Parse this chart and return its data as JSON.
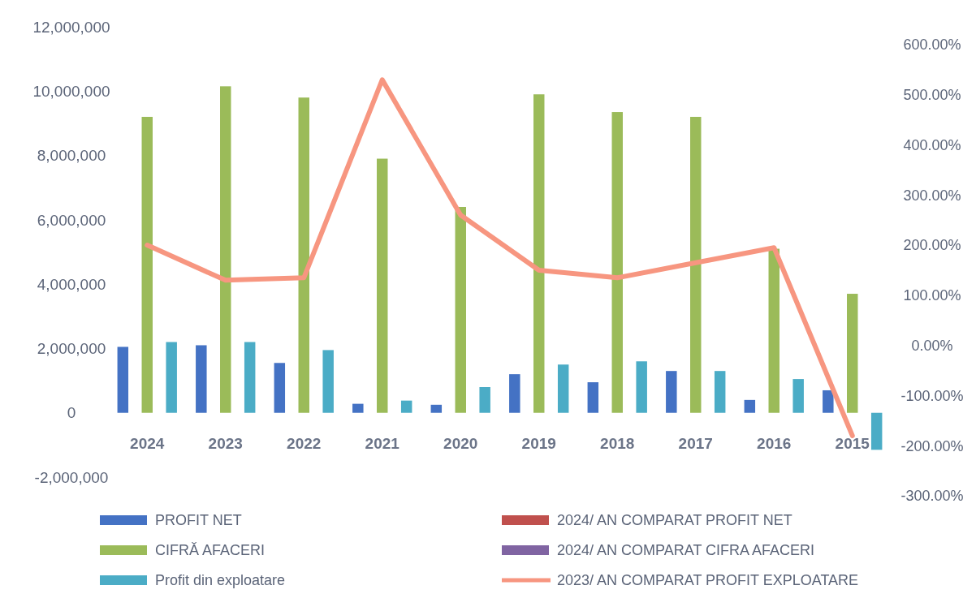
{
  "chart_data": {
    "type": "bar",
    "categories": [
      "2024",
      "2023",
      "2022",
      "2021",
      "2020",
      "2019",
      "2018",
      "2017",
      "2016",
      "2015"
    ],
    "series": [
      {
        "name": "PROFIT NET",
        "color": "#4472c4",
        "values": [
          2050000,
          2100000,
          1550000,
          280000,
          250000,
          1200000,
          950000,
          1300000,
          400000,
          700000
        ]
      },
      {
        "name": "CIFRĂ AFACERI",
        "color": "#9bbb59",
        "values": [
          9200000,
          10150000,
          9800000,
          7900000,
          6400000,
          9900000,
          9350000,
          9200000,
          5100000,
          3700000
        ]
      },
      {
        "name": "Profit din exploatare",
        "color": "#4bacc6",
        "values": [
          2200000,
          2200000,
          1950000,
          380000,
          800000,
          1500000,
          1600000,
          1300000,
          1050000,
          -1150000
        ]
      },
      {
        "name": "2024/ AN COMPARAT  PROFIT NET",
        "color": "#c0504d",
        "axis": "y2",
        "values": [
          null,
          null,
          null,
          null,
          null,
          null,
          null,
          null,
          null,
          null
        ]
      },
      {
        "name": "2024/ AN COMPARAT  CIFRA AFACERI",
        "color": "#8064a2",
        "axis": "y2",
        "values": [
          null,
          null,
          null,
          null,
          null,
          null,
          null,
          null,
          null,
          null
        ]
      },
      {
        "name": "2023/ AN COMPARAT  PROFIT EXPLOATARE",
        "color": "#f79680",
        "type": "line",
        "axis": "y2",
        "values": [
          200,
          130,
          135,
          530,
          260,
          150,
          135,
          165,
          195,
          -180
        ]
      }
    ],
    "ylim": [
      -2000000,
      12000000
    ],
    "yticks": [
      {
        "value": -2000000,
        "label": "-2,000,000"
      },
      0,
      {
        "value": 2000000,
        "label": "2,000,000"
      },
      {
        "value": 4000000,
        "label": "4,000,000"
      },
      {
        "value": 6000000,
        "label": "6,000,000"
      },
      {
        "value": 8000000,
        "label": "8,000,000"
      },
      {
        "value": 10000000,
        "label": "10,000,000"
      },
      {
        "value": 12000000,
        "label": "12,000,000"
      }
    ],
    "y2lim": [
      -300,
      600
    ],
    "y2ticks": [
      {
        "value": -300,
        "label": "-300.00%"
      },
      {
        "value": -200,
        "label": "-200.00%"
      },
      {
        "value": -100,
        "label": "-100.00%"
      },
      {
        "value": 0,
        "label": "0.00%"
      },
      {
        "value": 100,
        "label": "100.00%"
      },
      {
        "value": 200,
        "label": "200.00%"
      },
      {
        "value": 300,
        "label": "300.00%"
      },
      {
        "value": 400,
        "label": "400.00%"
      },
      {
        "value": 500,
        "label": "500.00%"
      },
      {
        "value": 600,
        "label": "600.00%"
      }
    ],
    "grid": false,
    "legend": "bottom"
  }
}
